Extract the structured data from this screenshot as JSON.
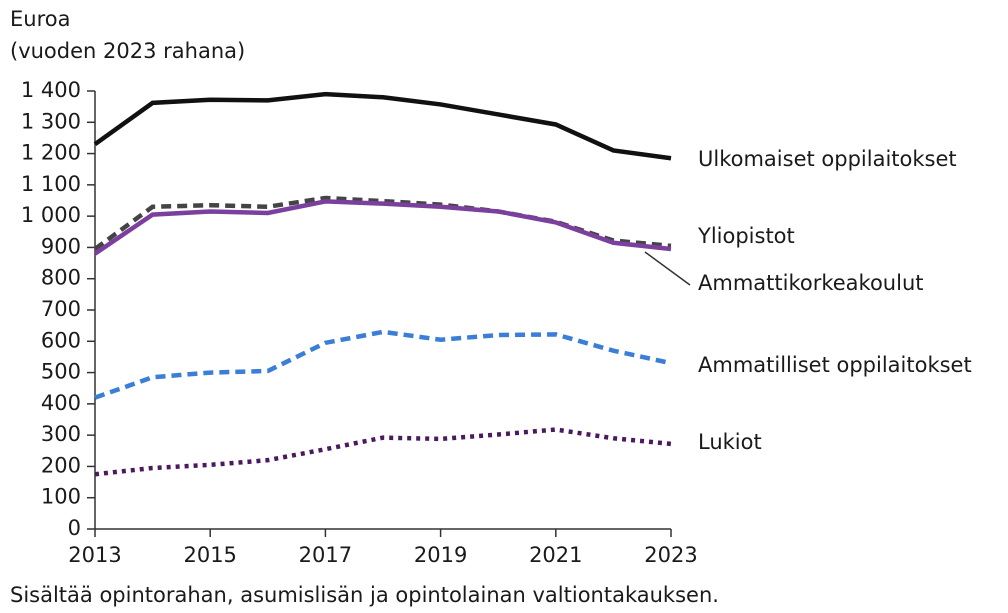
{
  "chart_data": {
    "type": "line",
    "y_label": [
      "Euroa",
      "(vuoden 2023 rahana)"
    ],
    "note": "Sisältää opintorahan, asumislisän ja opintolainan valtiontakauksen.",
    "x": [
      2013,
      2014,
      2015,
      2016,
      2017,
      2018,
      2019,
      2020,
      2021,
      2022,
      2023
    ],
    "xlim": [
      2013,
      2023
    ],
    "xticks": [
      2013,
      2015,
      2017,
      2019,
      2021,
      2023
    ],
    "ylim": [
      0,
      1400
    ],
    "yticks": [
      0,
      100,
      200,
      300,
      400,
      500,
      600,
      700,
      800,
      900,
      {
        "value": 1000,
        "label": "1 000"
      },
      {
        "value": 1100,
        "label": "1 100"
      },
      {
        "value": 1200,
        "label": "1 200"
      },
      {
        "value": 1300,
        "label": "1 300"
      },
      {
        "value": 1400,
        "label": "1 400"
      }
    ],
    "grid": false,
    "series": [
      {
        "name": "Ulkomaiset oppilaitokset",
        "color": "#111111",
        "dash": "solid",
        "values": [
          1230,
          1362,
          1372,
          1370,
          1390,
          1380,
          1357,
          1325,
          1293,
          1210,
          1185
        ]
      },
      {
        "name": "Yliopistot",
        "color": "#444444",
        "dash": "dashed",
        "values": [
          895,
          1030,
          1035,
          1030,
          1058,
          1048,
          1037,
          1015,
          982,
          922,
          905
        ]
      },
      {
        "name": "Ammattikorkeakoulut",
        "color": "#7b3f9e",
        "dash": "solid",
        "values": [
          880,
          1005,
          1015,
          1010,
          1047,
          1040,
          1030,
          1015,
          980,
          915,
          895
        ]
      },
      {
        "name": "Ammatilliset oppilaitokset",
        "color": "#3a7fd5",
        "dash": "dashed",
        "values": [
          420,
          485,
          500,
          505,
          595,
          630,
          605,
          620,
          622,
          570,
          530
        ]
      },
      {
        "name": "Lukiot",
        "color": "#4b1a5e",
        "dash": "dotted",
        "values": [
          175,
          195,
          205,
          220,
          255,
          292,
          288,
          302,
          318,
          290,
          272
        ]
      }
    ]
  }
}
